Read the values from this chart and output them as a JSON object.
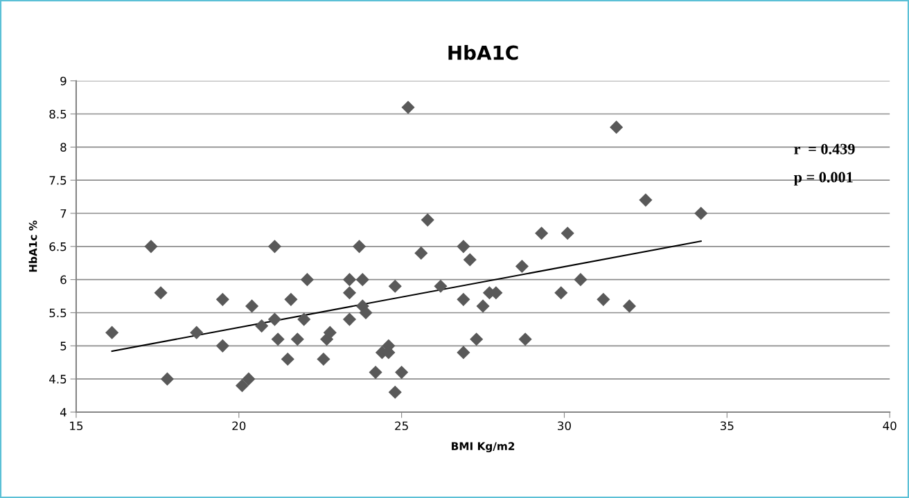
{
  "chart_data": {
    "type": "scatter",
    "title": "HbA1C",
    "xlabel": "BMI Kg/m2",
    "ylabel": "HbA1c %",
    "annotations": [
      "r  = 0.439",
      "p = 0.001"
    ],
    "xlim": [
      15,
      40
    ],
    "xticks": [
      15,
      20,
      25,
      30,
      35,
      40
    ],
    "ylim": [
      4,
      9
    ],
    "yticks": [
      4,
      4.5,
      5,
      5.5,
      6,
      6.5,
      7,
      7.5,
      8,
      8.5,
      9
    ],
    "grid": "y",
    "marker": "diamond",
    "legend": false,
    "series": [
      {
        "color": "#595959",
        "x": [
          16.1,
          17.3,
          17.6,
          17.8,
          18.7,
          19.5,
          19.5,
          20.1,
          20.3,
          20.4,
          20.7,
          21.1,
          21.1,
          21.2,
          21.5,
          21.6,
          21.8,
          22.0,
          22.1,
          22.6,
          22.7,
          22.8,
          23.4,
          23.4,
          23.4,
          23.8,
          23.7,
          23.8,
          23.9,
          24.2,
          24.4,
          24.6,
          24.6,
          24.8,
          24.8,
          25.0,
          25.2,
          25.6,
          25.8,
          26.2,
          26.9,
          27.1,
          26.9,
          26.9,
          27.3,
          27.5,
          27.7,
          27.9,
          28.7,
          28.8,
          29.3,
          29.9,
          30.1,
          30.5,
          31.2,
          31.6,
          32.0,
          32.5,
          34.2
        ],
        "values": [
          5.2,
          6.5,
          5.8,
          4.5,
          5.2,
          5.7,
          5.0,
          4.4,
          4.5,
          5.6,
          5.3,
          5.4,
          6.5,
          5.1,
          4.8,
          5.7,
          5.1,
          5.4,
          6.0,
          4.8,
          5.1,
          5.2,
          6.0,
          5.8,
          5.4,
          6.0,
          6.5,
          5.6,
          5.5,
          4.6,
          4.9,
          5.0,
          4.9,
          5.9,
          4.3,
          4.6,
          8.6,
          6.4,
          6.9,
          5.9,
          6.5,
          6.3,
          5.7,
          4.9,
          5.1,
          5.6,
          5.8,
          5.8,
          6.2,
          5.1,
          6.7,
          5.8,
          6.7,
          6.0,
          5.7,
          8.3,
          5.6,
          7.2,
          7.0
        ]
      },
      {
        "type": "line",
        "color": "#000000",
        "marker": "none",
        "x": [
          16.1,
          34.2
        ],
        "values": [
          4.92,
          6.58
        ]
      }
    ]
  }
}
